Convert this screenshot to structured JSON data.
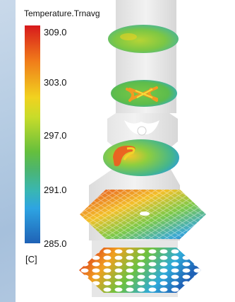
{
  "legend": {
    "title": "Temperature.Trnavg",
    "ticks": [
      "309.0",
      "303.0",
      "297.0",
      "291.0",
      "285.0"
    ],
    "unit": "[C]"
  },
  "colors": {
    "hot": "#d7191c",
    "warm": "#f1d21f",
    "mid": "#65bf3d",
    "cool": "#2ea4e2",
    "cold": "#1f62b6",
    "structure": "#d9d9d9"
  }
}
